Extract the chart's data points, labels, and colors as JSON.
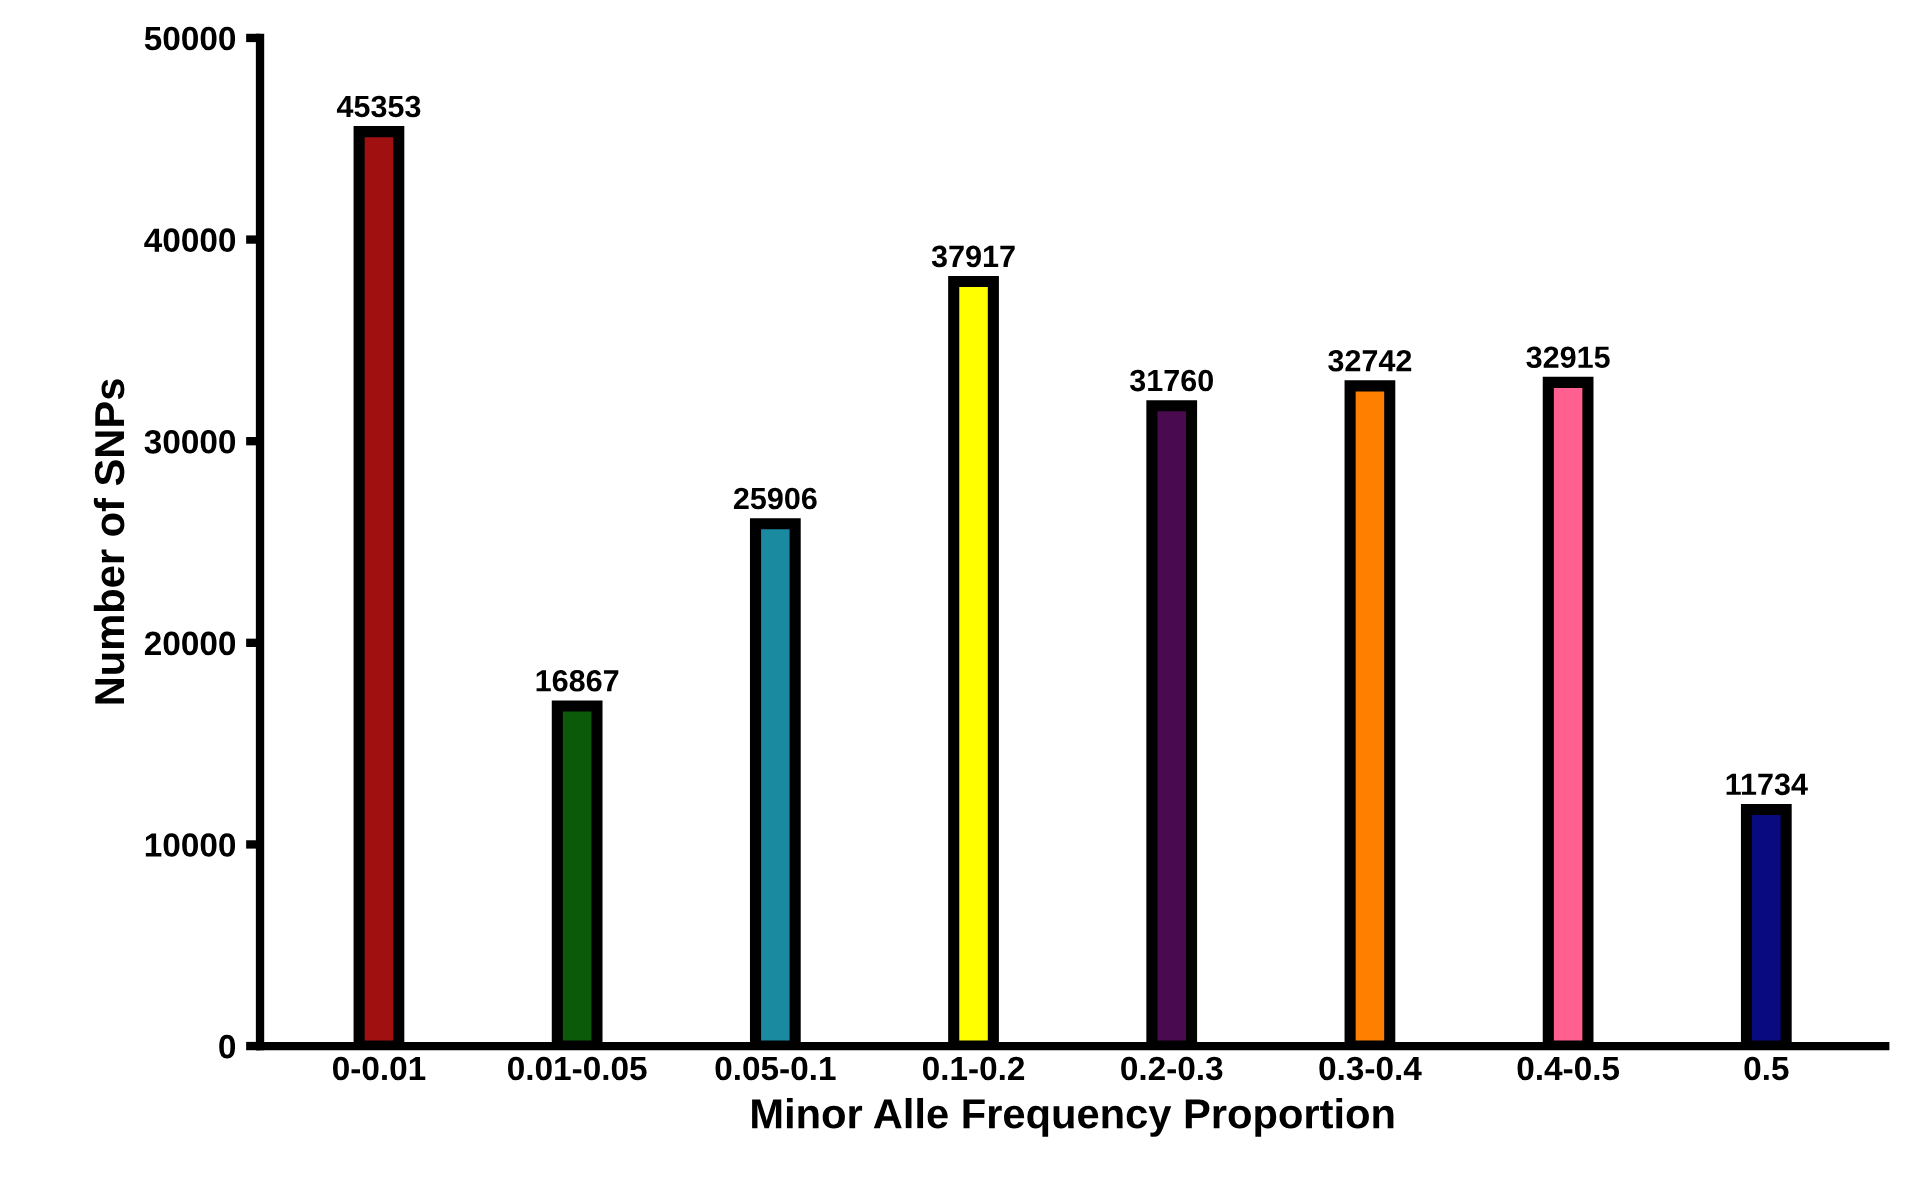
{
  "chart_data": {
    "type": "bar",
    "xlabel": "Minor Alle Frequency Proportion",
    "ylabel": "Number of SNPs",
    "categories": [
      "0-0.01",
      "0.01-0.05",
      "0.05-0.1",
      "0.1-0.2",
      "0.2-0.3",
      "0.3-0.4",
      "0.4-0.5",
      "0.5"
    ],
    "values": [
      45353,
      16867,
      25906,
      37917,
      31760,
      32742,
      32915,
      11734
    ],
    "colors": [
      "#a01010",
      "#0a5a0a",
      "#1a8aa0",
      "#ffff00",
      "#4a0a50",
      "#ff7f00",
      "#ff6090",
      "#0a0a80"
    ],
    "ylim": [
      0,
      50000
    ],
    "yticks": [
      0,
      10000,
      20000,
      30000,
      40000,
      50000
    ],
    "grid": false,
    "data_labels": true
  }
}
